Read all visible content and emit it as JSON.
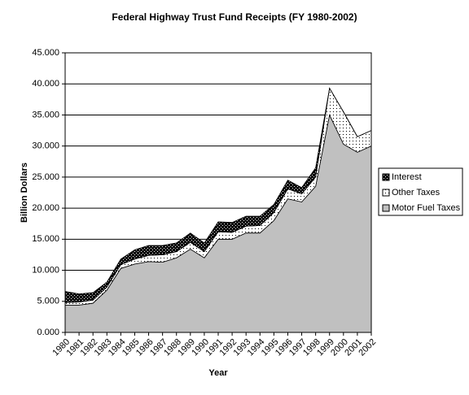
{
  "chart_data": {
    "type": "stacked_area",
    "title": "Federal Highway Trust Fund Receipts (FY 1980-2002)",
    "x_label": "Year",
    "y_label": "Billion Dollars",
    "categories": [
      "1980",
      "1981",
      "1982",
      "1983",
      "1984",
      "1985",
      "1986",
      "1987",
      "1988",
      "1989",
      "1990",
      "1991",
      "1992",
      "1993",
      "1994",
      "1995",
      "1996",
      "1997",
      "1998",
      "1999",
      "2000",
      "2001",
      "2002"
    ],
    "series": [
      {
        "name": "Motor Fuel Taxes",
        "color": "#c0c0c0",
        "values": [
          4400,
          4400,
          4700,
          6800,
          10300,
          11000,
          11400,
          11300,
          12000,
          13400,
          12000,
          15000,
          15000,
          16000,
          16000,
          18000,
          21500,
          21000,
          23500,
          35000,
          30300,
          29000,
          30000
        ]
      },
      {
        "name": "Other Taxes",
        "color": "#ffffff",
        "values": [
          400,
          500,
          500,
          500,
          600,
          800,
          1000,
          1200,
          1000,
          1100,
          1000,
          1200,
          1100,
          1100,
          1200,
          1300,
          1600,
          1300,
          1500,
          4300,
          5200,
          2500,
          2500
        ]
      },
      {
        "name": "Interest",
        "color": "#000000",
        "values": [
          1800,
          1300,
          1200,
          800,
          900,
          1500,
          1600,
          1500,
          1400,
          1500,
          1400,
          1600,
          1600,
          1600,
          1500,
          1300,
          1400,
          1000,
          1500,
          0,
          0,
          0,
          0
        ]
      }
    ],
    "ylim": [
      0,
      45000
    ],
    "yticks": [
      {
        "value": 0,
        "label": "0.000"
      },
      {
        "value": 5000,
        "label": "5.000"
      },
      {
        "value": 10000,
        "label": "10.000"
      },
      {
        "value": 15000,
        "label": "15.000"
      },
      {
        "value": 20000,
        "label": "20.000"
      },
      {
        "value": 25000,
        "label": "25.000"
      },
      {
        "value": 30000,
        "label": "30.000"
      },
      {
        "value": 35000,
        "label": "35.000"
      },
      {
        "value": 40000,
        "label": "40.000"
      },
      {
        "value": 45000,
        "label": "45.000"
      }
    ],
    "grid": true,
    "legend": "right"
  }
}
